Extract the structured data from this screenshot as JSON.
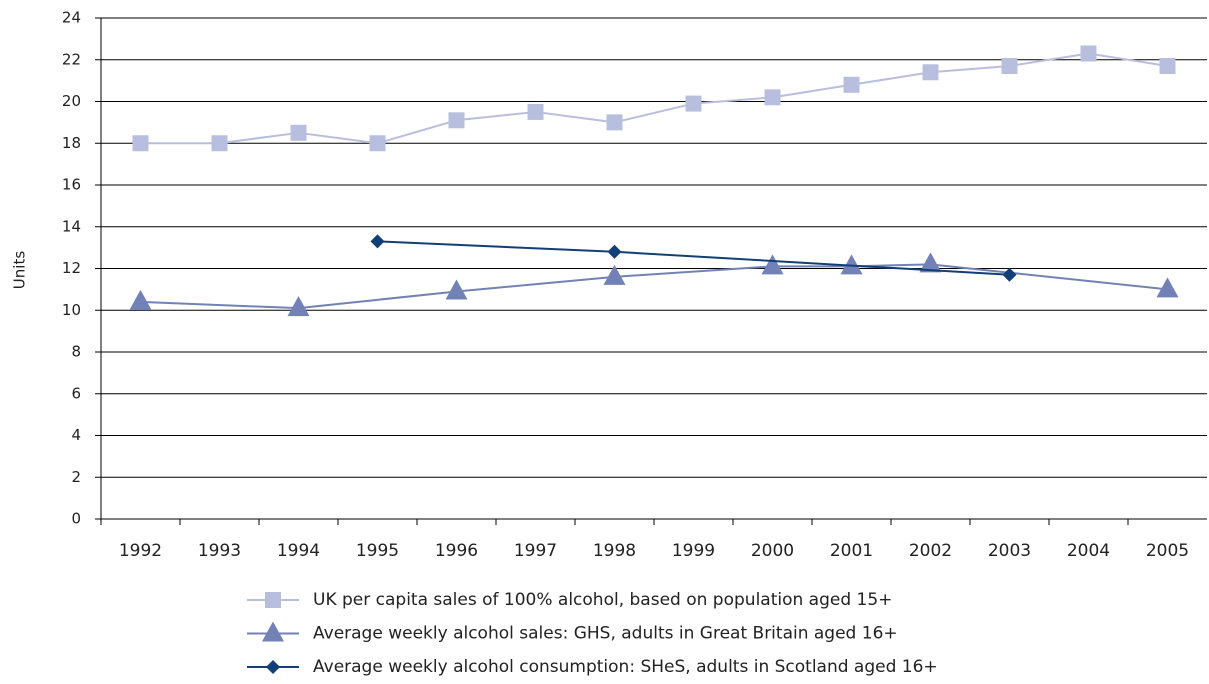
{
  "chart_data": {
    "type": "line",
    "ylabel": "Units",
    "categories": [
      "1992",
      "1993",
      "1994",
      "1995",
      "1996",
      "1997",
      "1998",
      "1999",
      "2000",
      "2001",
      "2002",
      "2003",
      "2004",
      "2005"
    ],
    "series": [
      {
        "name": "UK per capita sales of 100% alcohol, based on population aged 15+",
        "color": "#b8bfde",
        "marker": "square",
        "values": [
          18.0,
          18.0,
          18.5,
          18.0,
          19.1,
          19.5,
          19.0,
          19.9,
          20.2,
          20.8,
          21.4,
          21.7,
          22.3,
          21.7
        ]
      },
      {
        "name": "Average weekly alcohol sales: GHS, adults in Great Britain aged 16+",
        "color": "#7282b6",
        "marker": "triangle",
        "values": [
          10.4,
          null,
          10.1,
          null,
          10.9,
          null,
          11.6,
          null,
          12.1,
          12.1,
          12.2,
          null,
          null,
          11.0
        ]
      },
      {
        "name": "Average weekly alcohol consumption: SHeS, adults in Scotland aged 16+",
        "color": "#123f78",
        "marker": "diamond",
        "values": [
          null,
          null,
          null,
          13.3,
          null,
          null,
          12.8,
          null,
          null,
          null,
          null,
          11.7,
          null,
          null
        ]
      }
    ],
    "ylim": [
      0,
      24
    ],
    "yticks": [
      0,
      2,
      4,
      6,
      8,
      10,
      12,
      14,
      16,
      18,
      20,
      22,
      24
    ],
    "grid": true,
    "legend": "bottom"
  }
}
